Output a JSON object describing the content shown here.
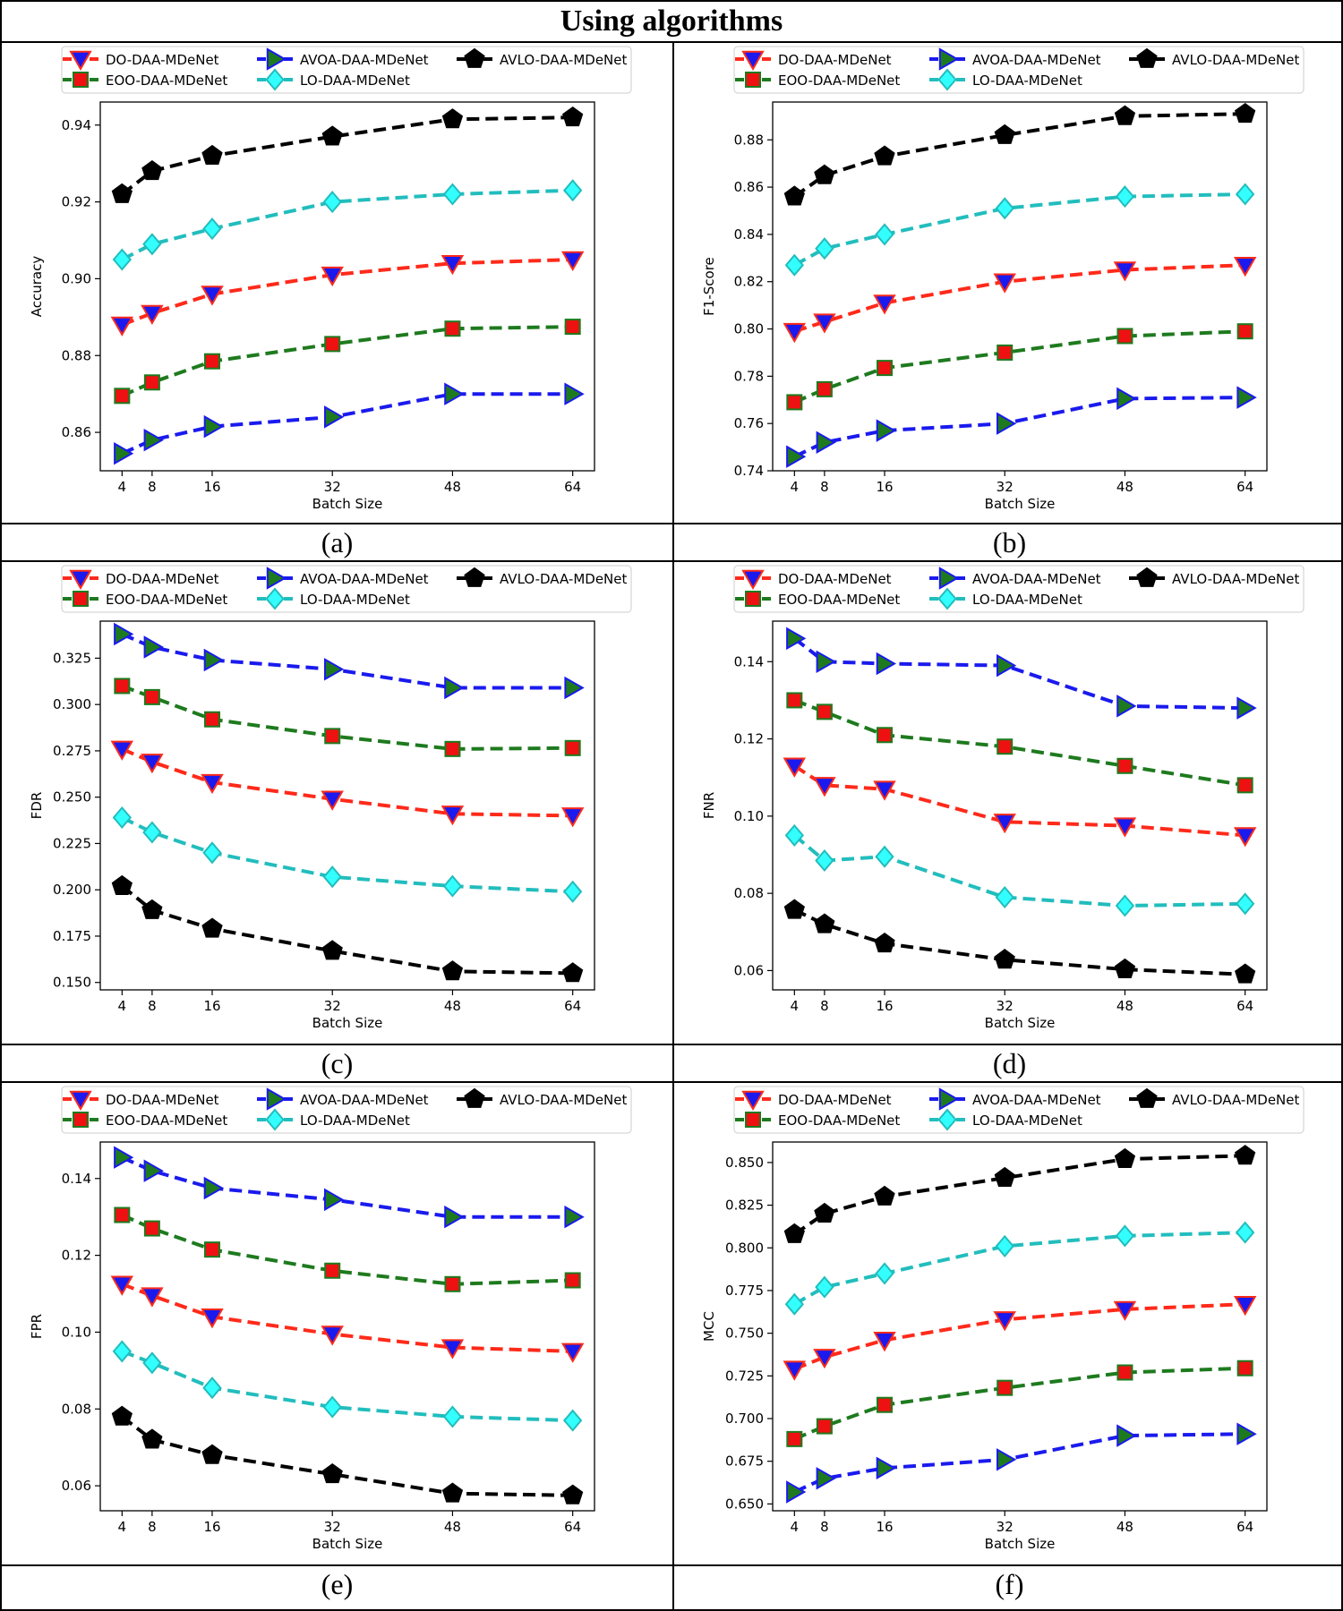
{
  "figure": {
    "title": "Using algorithms",
    "captions": [
      "(a)",
      "(b)",
      "(c)",
      "(d)",
      "(e)",
      "(f)"
    ]
  },
  "series_styles": [
    {
      "name": "DO-DAA-MDeNet",
      "line": "#ff2a1a",
      "fill": "#1a1aee",
      "edge": "#ff2a1a",
      "marker": "triangle-down"
    },
    {
      "name": "EOO-DAA-MDeNet",
      "line": "#1e7a1e",
      "fill": "#ee1111",
      "edge": "#1e7a1e",
      "marker": "square"
    },
    {
      "name": "AVOA-DAA-MDeNet",
      "line": "#1a1aee",
      "fill": "#1e7a1e",
      "edge": "#1a1aee",
      "marker": "triangle-right"
    },
    {
      "name": "LO-DAA-MDeNet",
      "line": "#22bdbd",
      "fill": "#33ffff",
      "edge": "#22bdbd",
      "marker": "diamond"
    },
    {
      "name": "AVLO-DAA-MDeNet",
      "line": "#000000",
      "fill": "#000000",
      "edge": "#000000",
      "marker": "pentagon"
    }
  ],
  "chart_data": [
    {
      "type": "line",
      "xlabel": "Batch Size",
      "ylabel": "Accuracy",
      "x": [
        4,
        8,
        16,
        32,
        48,
        64
      ],
      "ylim": [
        0.85,
        0.946
      ],
      "yticks": [
        0.86,
        0.88,
        0.9,
        0.92,
        0.94
      ],
      "ytick_labels": [
        "0.86",
        "0.88",
        "0.90",
        "0.92",
        "0.94"
      ],
      "series": [
        {
          "name": "DO-DAA-MDeNet",
          "values": [
            0.888,
            0.891,
            0.896,
            0.901,
            0.904,
            0.905
          ]
        },
        {
          "name": "EOO-DAA-MDeNet",
          "values": [
            0.8695,
            0.873,
            0.8785,
            0.883,
            0.887,
            0.8875
          ]
        },
        {
          "name": "AVOA-DAA-MDeNet",
          "values": [
            0.8545,
            0.858,
            0.8615,
            0.864,
            0.87,
            0.87
          ]
        },
        {
          "name": "LO-DAA-MDeNet",
          "values": [
            0.905,
            0.909,
            0.913,
            0.92,
            0.922,
            0.923
          ]
        },
        {
          "name": "AVLO-DAA-MDeNet",
          "values": [
            0.922,
            0.928,
            0.932,
            0.937,
            0.9415,
            0.942
          ]
        }
      ]
    },
    {
      "type": "line",
      "xlabel": "Batch Size",
      "ylabel": "F1-Score",
      "x": [
        4,
        8,
        16,
        32,
        48,
        64
      ],
      "ylim": [
        0.74,
        0.896
      ],
      "yticks": [
        0.74,
        0.76,
        0.78,
        0.8,
        0.82,
        0.84,
        0.86,
        0.88
      ],
      "ytick_labels": [
        "0.74",
        "0.76",
        "0.78",
        "0.80",
        "0.82",
        "0.84",
        "0.86",
        "0.88"
      ],
      "series": [
        {
          "name": "DO-DAA-MDeNet",
          "values": [
            0.799,
            0.803,
            0.811,
            0.82,
            0.825,
            0.827
          ]
        },
        {
          "name": "EOO-DAA-MDeNet",
          "values": [
            0.769,
            0.7745,
            0.7835,
            0.79,
            0.797,
            0.799
          ]
        },
        {
          "name": "AVOA-DAA-MDeNet",
          "values": [
            0.746,
            0.752,
            0.757,
            0.76,
            0.7705,
            0.771
          ]
        },
        {
          "name": "LO-DAA-MDeNet",
          "values": [
            0.827,
            0.834,
            0.84,
            0.851,
            0.856,
            0.857
          ]
        },
        {
          "name": "AVLO-DAA-MDeNet",
          "values": [
            0.856,
            0.865,
            0.873,
            0.882,
            0.89,
            0.891
          ]
        }
      ]
    },
    {
      "type": "line",
      "xlabel": "Batch Size",
      "ylabel": "FDR",
      "x": [
        4,
        8,
        16,
        32,
        48,
        64
      ],
      "ylim": [
        0.146,
        0.345
      ],
      "yticks": [
        0.15,
        0.175,
        0.2,
        0.225,
        0.25,
        0.275,
        0.3,
        0.325
      ],
      "ytick_labels": [
        "0.150",
        "0.175",
        "0.200",
        "0.225",
        "0.250",
        "0.275",
        "0.300",
        "0.325"
      ],
      "series": [
        {
          "name": "DO-DAA-MDeNet",
          "values": [
            0.276,
            0.269,
            0.258,
            0.249,
            0.241,
            0.24
          ]
        },
        {
          "name": "EOO-DAA-MDeNet",
          "values": [
            0.31,
            0.304,
            0.292,
            0.283,
            0.276,
            0.2765
          ]
        },
        {
          "name": "AVOA-DAA-MDeNet",
          "values": [
            0.338,
            0.331,
            0.324,
            0.319,
            0.309,
            0.309
          ]
        },
        {
          "name": "LO-DAA-MDeNet",
          "values": [
            0.239,
            0.231,
            0.22,
            0.207,
            0.202,
            0.199
          ]
        },
        {
          "name": "AVLO-DAA-MDeNet",
          "values": [
            0.202,
            0.189,
            0.179,
            0.167,
            0.156,
            0.155
          ]
        }
      ]
    },
    {
      "type": "line",
      "xlabel": "Batch Size",
      "ylabel": "FNR",
      "x": [
        4,
        8,
        16,
        32,
        48,
        64
      ],
      "ylim": [
        0.055,
        0.1505
      ],
      "yticks": [
        0.06,
        0.08,
        0.1,
        0.12,
        0.14
      ],
      "ytick_labels": [
        "0.06",
        "0.08",
        "0.10",
        "0.12",
        "0.14"
      ],
      "series": [
        {
          "name": "DO-DAA-MDeNet",
          "values": [
            0.113,
            0.108,
            0.107,
            0.0985,
            0.0975,
            0.095
          ]
        },
        {
          "name": "EOO-DAA-MDeNet",
          "values": [
            0.13,
            0.127,
            0.121,
            0.118,
            0.113,
            0.108
          ]
        },
        {
          "name": "AVOA-DAA-MDeNet",
          "values": [
            0.146,
            0.14,
            0.1395,
            0.139,
            0.1285,
            0.128
          ]
        },
        {
          "name": "LO-DAA-MDeNet",
          "values": [
            0.095,
            0.0885,
            0.0895,
            0.079,
            0.0768,
            0.0773
          ]
        },
        {
          "name": "AVLO-DAA-MDeNet",
          "values": [
            0.0757,
            0.072,
            0.067,
            0.0628,
            0.0603,
            0.059
          ]
        }
      ]
    },
    {
      "type": "line",
      "xlabel": "Batch Size",
      "ylabel": "FPR",
      "x": [
        4,
        8,
        16,
        32,
        48,
        64
      ],
      "ylim": [
        0.0535,
        0.1495
      ],
      "yticks": [
        0.06,
        0.08,
        0.1,
        0.12,
        0.14
      ],
      "ytick_labels": [
        "0.06",
        "0.08",
        "0.10",
        "0.12",
        "0.14"
      ],
      "series": [
        {
          "name": "DO-DAA-MDeNet",
          "values": [
            0.1125,
            0.1095,
            0.104,
            0.0995,
            0.096,
            0.095
          ]
        },
        {
          "name": "EOO-DAA-MDeNet",
          "values": [
            0.1305,
            0.127,
            0.1215,
            0.116,
            0.1125,
            0.1135
          ]
        },
        {
          "name": "AVOA-DAA-MDeNet",
          "values": [
            0.1455,
            0.142,
            0.1375,
            0.1345,
            0.13,
            0.13
          ]
        },
        {
          "name": "LO-DAA-MDeNet",
          "values": [
            0.095,
            0.092,
            0.0855,
            0.0805,
            0.078,
            0.077
          ]
        },
        {
          "name": "AVLO-DAA-MDeNet",
          "values": [
            0.078,
            0.072,
            0.068,
            0.063,
            0.058,
            0.0575
          ]
        }
      ]
    },
    {
      "type": "line",
      "xlabel": "Batch Size",
      "ylabel": "MCC",
      "x": [
        4,
        8,
        16,
        32,
        48,
        64
      ],
      "ylim": [
        0.646,
        0.862
      ],
      "yticks": [
        0.65,
        0.675,
        0.7,
        0.725,
        0.75,
        0.775,
        0.8,
        0.825,
        0.85
      ],
      "ytick_labels": [
        "0.650",
        "0.675",
        "0.700",
        "0.725",
        "0.750",
        "0.775",
        "0.800",
        "0.825",
        "0.850"
      ],
      "series": [
        {
          "name": "DO-DAA-MDeNet",
          "values": [
            0.729,
            0.736,
            0.746,
            0.758,
            0.764,
            0.767
          ]
        },
        {
          "name": "EOO-DAA-MDeNet",
          "values": [
            0.688,
            0.6955,
            0.708,
            0.718,
            0.727,
            0.7295
          ]
        },
        {
          "name": "AVOA-DAA-MDeNet",
          "values": [
            0.657,
            0.665,
            0.671,
            0.676,
            0.69,
            0.691
          ]
        },
        {
          "name": "LO-DAA-MDeNet",
          "values": [
            0.767,
            0.777,
            0.785,
            0.801,
            0.807,
            0.809
          ]
        },
        {
          "name": "AVLO-DAA-MDeNet",
          "values": [
            0.808,
            0.82,
            0.83,
            0.841,
            0.852,
            0.854
          ]
        }
      ]
    }
  ]
}
